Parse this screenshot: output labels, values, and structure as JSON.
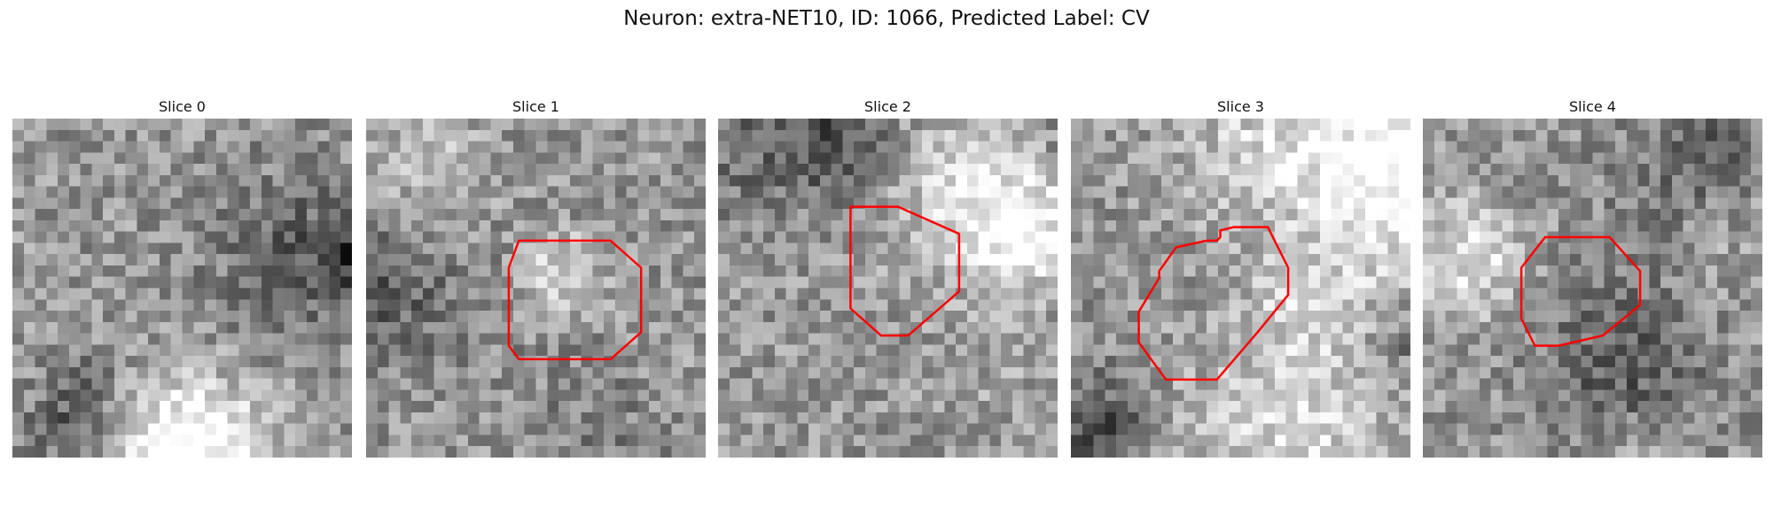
{
  "figure": {
    "title": "Neuron: extra-NET10, ID: 1066, Predicted Label: CV"
  },
  "slices": [
    {
      "title": "Slice 0",
      "has_outline": false,
      "seed": 11,
      "outline": []
    },
    {
      "title": "Slice 1",
      "has_outline": true,
      "seed": 23,
      "outline": [
        [
          0.45,
          0.36
        ],
        [
          0.72,
          0.36
        ],
        [
          0.81,
          0.44
        ],
        [
          0.81,
          0.63
        ],
        [
          0.72,
          0.71
        ],
        [
          0.45,
          0.71
        ],
        [
          0.42,
          0.67
        ],
        [
          0.42,
          0.44
        ]
      ]
    },
    {
      "title": "Slice 2",
      "has_outline": true,
      "seed": 37,
      "outline": [
        [
          0.39,
          0.26
        ],
        [
          0.53,
          0.26
        ],
        [
          0.71,
          0.34
        ],
        [
          0.71,
          0.51
        ],
        [
          0.56,
          0.64
        ],
        [
          0.48,
          0.64
        ],
        [
          0.39,
          0.56
        ],
        [
          0.39,
          0.34
        ]
      ]
    },
    {
      "title": "Slice 3",
      "has_outline": true,
      "seed": 41,
      "outline": [
        [
          0.43,
          0.36
        ],
        [
          0.44,
          0.35
        ],
        [
          0.44,
          0.33
        ],
        [
          0.48,
          0.32
        ],
        [
          0.58,
          0.32
        ],
        [
          0.64,
          0.44
        ],
        [
          0.64,
          0.52
        ],
        [
          0.55,
          0.63
        ],
        [
          0.43,
          0.77
        ],
        [
          0.28,
          0.77
        ],
        [
          0.2,
          0.66
        ],
        [
          0.2,
          0.57
        ],
        [
          0.26,
          0.47
        ],
        [
          0.26,
          0.45
        ],
        [
          0.31,
          0.38
        ],
        [
          0.4,
          0.36
        ]
      ]
    },
    {
      "title": "Slice 4",
      "has_outline": true,
      "seed": 53,
      "outline": [
        [
          0.36,
          0.35
        ],
        [
          0.55,
          0.35
        ],
        [
          0.64,
          0.45
        ],
        [
          0.64,
          0.55
        ],
        [
          0.53,
          0.64
        ],
        [
          0.4,
          0.67
        ],
        [
          0.33,
          0.67
        ],
        [
          0.29,
          0.59
        ],
        [
          0.29,
          0.44
        ]
      ]
    }
  ],
  "colors": {
    "outline": "#ff0000",
    "text": "#111111",
    "background": "#ffffff"
  }
}
